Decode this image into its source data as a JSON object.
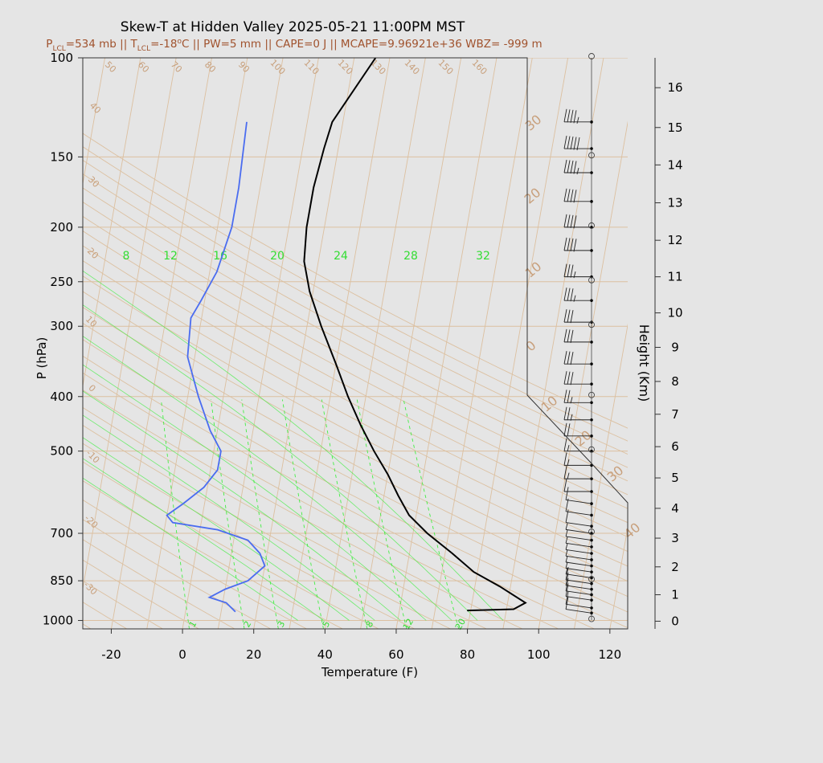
{
  "colors": {
    "background": "#e5e5e5",
    "grid": "#dcc0a0",
    "label_tan": "#c8a07c",
    "temperature": "#000000",
    "dewpoint": "#4a6cf0",
    "mixing": "#44ee44",
    "subtitle": "#a0522d"
  },
  "chart_data": {
    "type": "skew-t",
    "title": "Skew-T at Hidden Valley 2025-05-21 11:00PM MST",
    "subtitle": {
      "plcl_label": "P",
      "plcl_sub": "LCL",
      "plcl_value": "=534 mb || T",
      "tlcl_sub": "LCL",
      "tlcl_value": "=-18",
      "tlcl_deg": "o",
      "rest": "C || PW=5 mm || CAPE=0 J || MCAPE=9.96921e+36 WBZ= -999 m"
    },
    "xlabel": "Temperature (F)",
    "ylabel": "P (hPa)",
    "height_label": "Height (Km)",
    "x_ticks": [
      "-20",
      "0",
      "20",
      "40",
      "60",
      "80",
      "100",
      "120"
    ],
    "x_tick_values": [
      -20,
      0,
      20,
      40,
      60,
      80,
      100,
      120
    ],
    "xlim": [
      -28,
      125
    ],
    "ylim": [
      1035,
      100
    ],
    "p_ticks": [
      "100",
      "150",
      "200",
      "250",
      "300",
      "400",
      "500",
      "700",
      "850",
      "1000"
    ],
    "p_tick_values": [
      100,
      150,
      200,
      250,
      300,
      400,
      500,
      700,
      850,
      1000
    ],
    "height_ticks": [
      "0",
      "1",
      "2",
      "3",
      "4",
      "5",
      "6",
      "7",
      "8",
      "9",
      "10",
      "11",
      "12",
      "13",
      "14",
      "15",
      "16"
    ],
    "height_tick_pressures": [
      1003,
      900,
      803,
      714,
      632,
      558,
      491,
      430,
      376,
      327,
      284,
      245,
      211,
      181,
      155,
      133,
      113
    ],
    "isotherm_labels": [
      "50",
      "60",
      "70",
      "80",
      "90",
      "100",
      "110",
      "120",
      "130",
      "140",
      "150",
      "160",
      "40",
      "30",
      "20",
      "10",
      "0",
      "-10",
      "-20",
      "-30"
    ],
    "isotherm_label_values": [
      50,
      60,
      70,
      80,
      90,
      100,
      110,
      120,
      130,
      140,
      150,
      160,
      40,
      30,
      20,
      10,
      0,
      -10,
      -20,
      -30
    ],
    "theta_labels": [
      "30",
      "20",
      "10",
      "0",
      "10",
      "20",
      "30",
      "40"
    ],
    "mixing_top_labels": [
      "8",
      "12",
      "16",
      "20",
      "24",
      "28",
      "32"
    ],
    "mixing_top_values": [
      8,
      12,
      16,
      20,
      24,
      28,
      32
    ],
    "mixing_bottom_labels": [
      "1",
      "2",
      "3",
      "5",
      "8",
      "12",
      "20"
    ],
    "mixing_bottom_values": [
      1,
      2,
      3,
      5,
      8,
      12,
      20
    ],
    "temperature": {
      "p": [
        960,
        955,
        930,
        870,
        820,
        760,
        700,
        650,
        600,
        550,
        500,
        450,
        400,
        350,
        300,
        260,
        230,
        200,
        170,
        145,
        130,
        100
      ],
      "t": [
        79,
        92,
        95,
        87,
        79,
        72,
        64,
        58,
        54,
        50,
        45,
        40,
        35,
        30,
        24,
        19,
        16,
        15,
        15,
        16,
        17,
        26
      ]
    },
    "dewpoint": {
      "p": [
        965,
        930,
        910,
        880,
        850,
        800,
        760,
        720,
        690,
        670,
        650,
        620,
        580,
        540,
        500,
        460,
        400,
        340,
        290,
        270,
        240,
        200,
        170,
        130
      ],
      "t": [
        14,
        11,
        6,
        10,
        16,
        20,
        18,
        14,
        5,
        -8,
        -10,
        -6,
        -1,
        2,
        2,
        -2,
        -7,
        -12,
        -13,
        -11,
        -8,
        -6,
        -6,
        -7
      ]
    },
    "wind_barbs": {
      "p": [
        970,
        950,
        920,
        900,
        880,
        860,
        840,
        820,
        800,
        780,
        760,
        740,
        720,
        700,
        680,
        650,
        620,
        590,
        560,
        530,
        500,
        470,
        440,
        410,
        380,
        350,
        320,
        295,
        270,
        245,
        220,
        200,
        180,
        160,
        145,
        130
      ],
      "knots": [
        12,
        12,
        12,
        10,
        10,
        10,
        8,
        8,
        5,
        5,
        5,
        8,
        8,
        8,
        10,
        10,
        10,
        10,
        15,
        15,
        15,
        20,
        25,
        25,
        30,
        30,
        30,
        30,
        35,
        35,
        40,
        40,
        40,
        45,
        50,
        45
      ]
    }
  }
}
